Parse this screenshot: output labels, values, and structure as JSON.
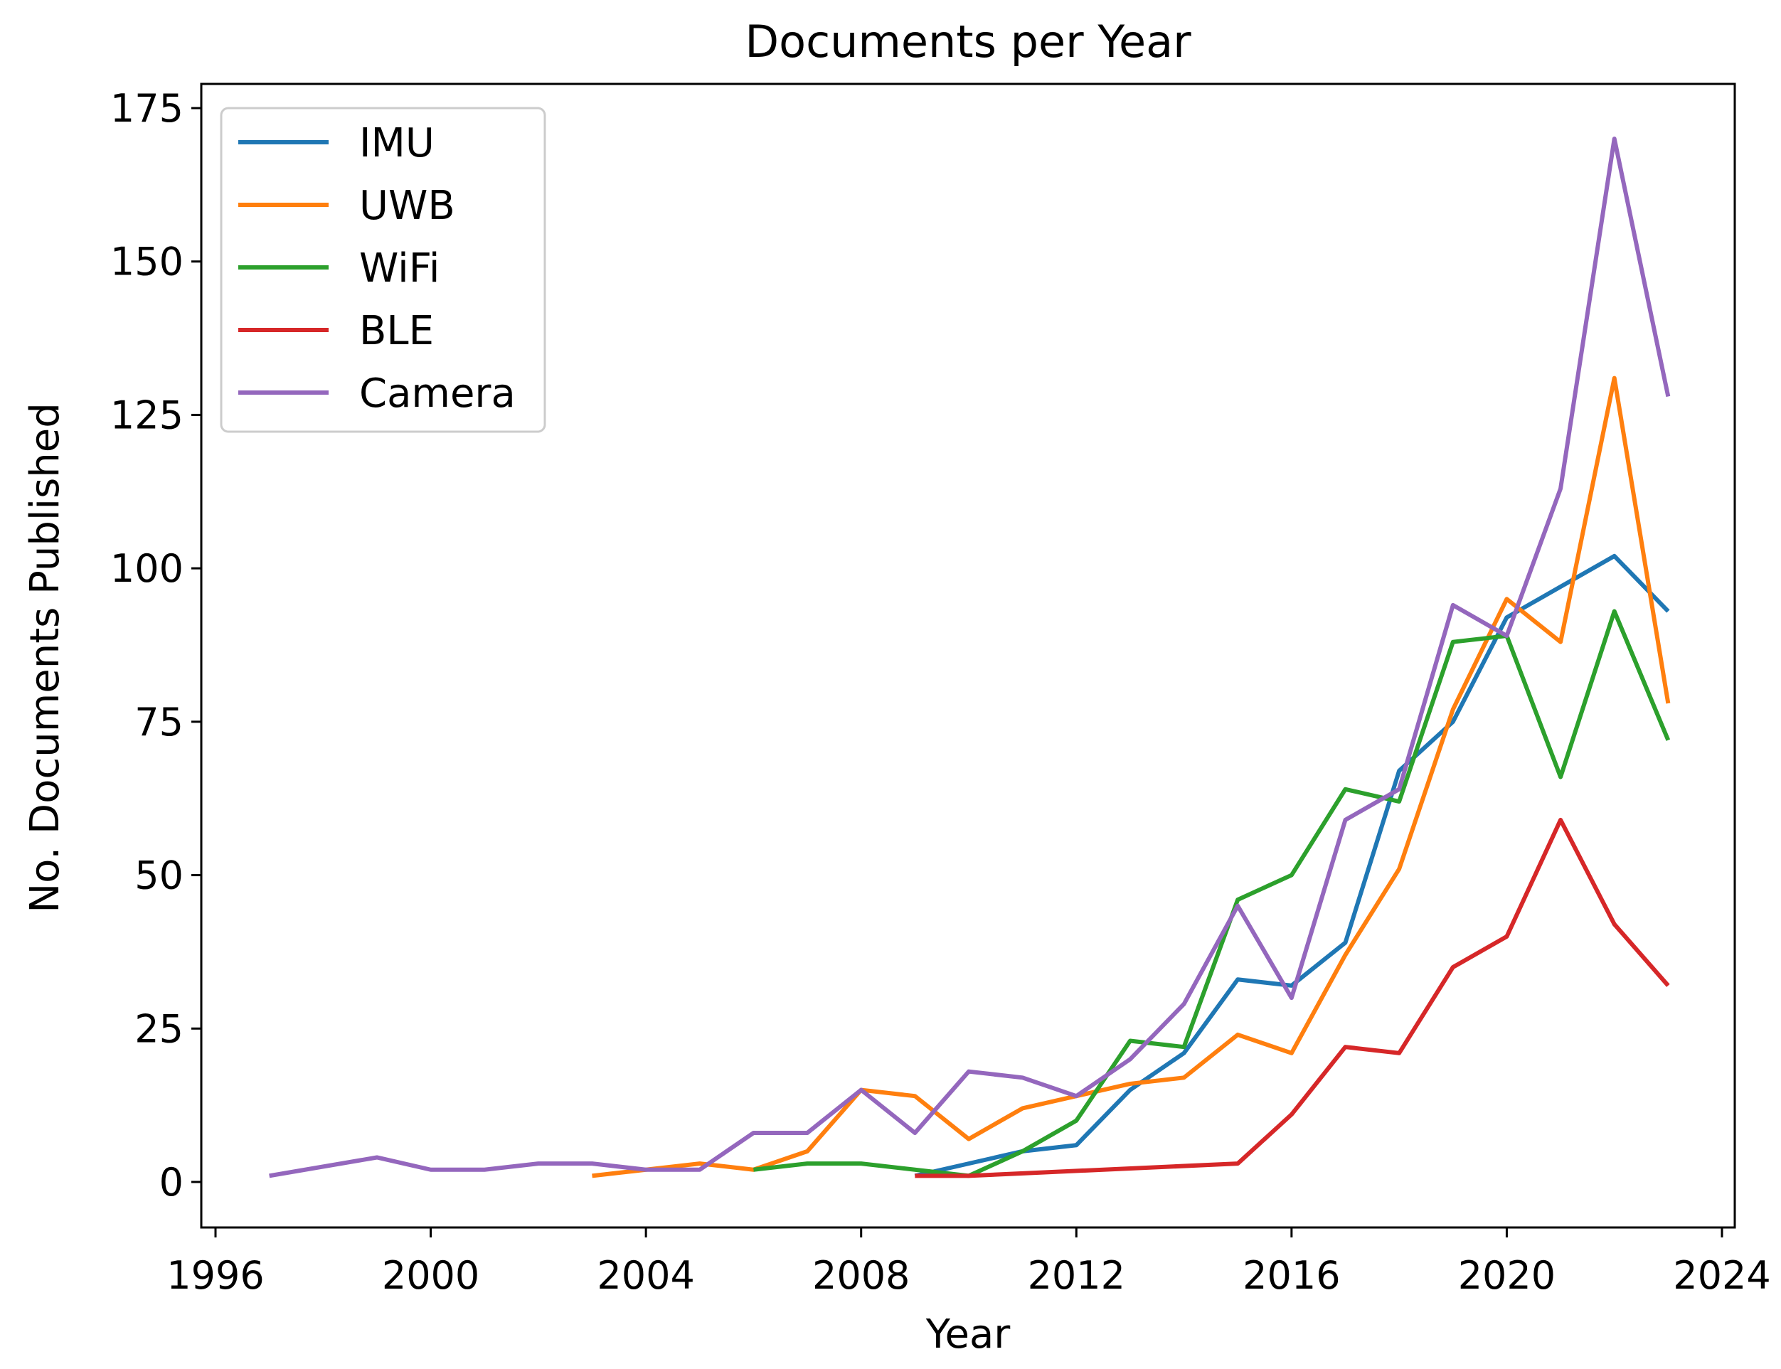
{
  "chart_data": {
    "type": "line",
    "title": "Documents per Year",
    "xlabel": "Year",
    "ylabel": "No. Documents Published",
    "xlim": [
      1996,
      2024
    ],
    "ylim": [
      -7,
      179
    ],
    "xticks": [
      1996,
      2000,
      2004,
      2008,
      2012,
      2016,
      2020,
      2024
    ],
    "yticks": [
      0,
      25,
      50,
      75,
      100,
      125,
      150,
      175
    ],
    "grid": false,
    "legend_position": "top-left",
    "series": [
      {
        "name": "IMU",
        "color": "#1f77b4",
        "x": [
          2009,
          2010,
          2011,
          2012,
          2013,
          2014,
          2015,
          2016,
          2017,
          2018,
          2019,
          2020,
          2021,
          2022,
          2023
        ],
        "y": [
          1,
          3,
          5,
          6,
          15,
          21,
          33,
          32,
          39,
          67,
          75,
          92,
          97,
          102,
          93
        ]
      },
      {
        "name": "UWB",
        "color": "#ff7f0e",
        "x": [
          2003,
          2004,
          2005,
          2006,
          2007,
          2008,
          2009,
          2010,
          2011,
          2012,
          2013,
          2014,
          2015,
          2016,
          2017,
          2018,
          2019,
          2020,
          2021,
          2022,
          2023
        ],
        "y": [
          1,
          2,
          3,
          2,
          5,
          15,
          14,
          7,
          12,
          14,
          16,
          17,
          24,
          21,
          37,
          51,
          77,
          95,
          88,
          131,
          78
        ]
      },
      {
        "name": "WiFi",
        "color": "#2ca02c",
        "x": [
          2006,
          2007,
          2008,
          2009,
          2010,
          2011,
          2012,
          2013,
          2014,
          2015,
          2016,
          2017,
          2018,
          2019,
          2020,
          2021,
          2022,
          2023
        ],
        "y": [
          2,
          3,
          3,
          2,
          1,
          5,
          10,
          23,
          22,
          46,
          50,
          64,
          62,
          88,
          89,
          66,
          93,
          72
        ]
      },
      {
        "name": "BLE",
        "color": "#d62728",
        "x": [
          2009,
          2010,
          2015,
          2016,
          2017,
          2018,
          2019,
          2020,
          2021,
          2022,
          2023
        ],
        "y": [
          1,
          1,
          3,
          11,
          22,
          21,
          35,
          40,
          59,
          42,
          32
        ]
      },
      {
        "name": "Camera",
        "color": "#9467bd",
        "x": [
          1997,
          1999,
          2000,
          2001,
          2002,
          2003,
          2004,
          2005,
          2006,
          2007,
          2008,
          2009,
          2010,
          2011,
          2012,
          2013,
          2014,
          2015,
          2016,
          2017,
          2018,
          2019,
          2020,
          2021,
          2022,
          2023
        ],
        "y": [
          1,
          4,
          2,
          2,
          3,
          3,
          2,
          2,
          8,
          8,
          15,
          8,
          18,
          17,
          14,
          20,
          29,
          45,
          30,
          59,
          64,
          94,
          89,
          113,
          170,
          128
        ]
      }
    ]
  }
}
